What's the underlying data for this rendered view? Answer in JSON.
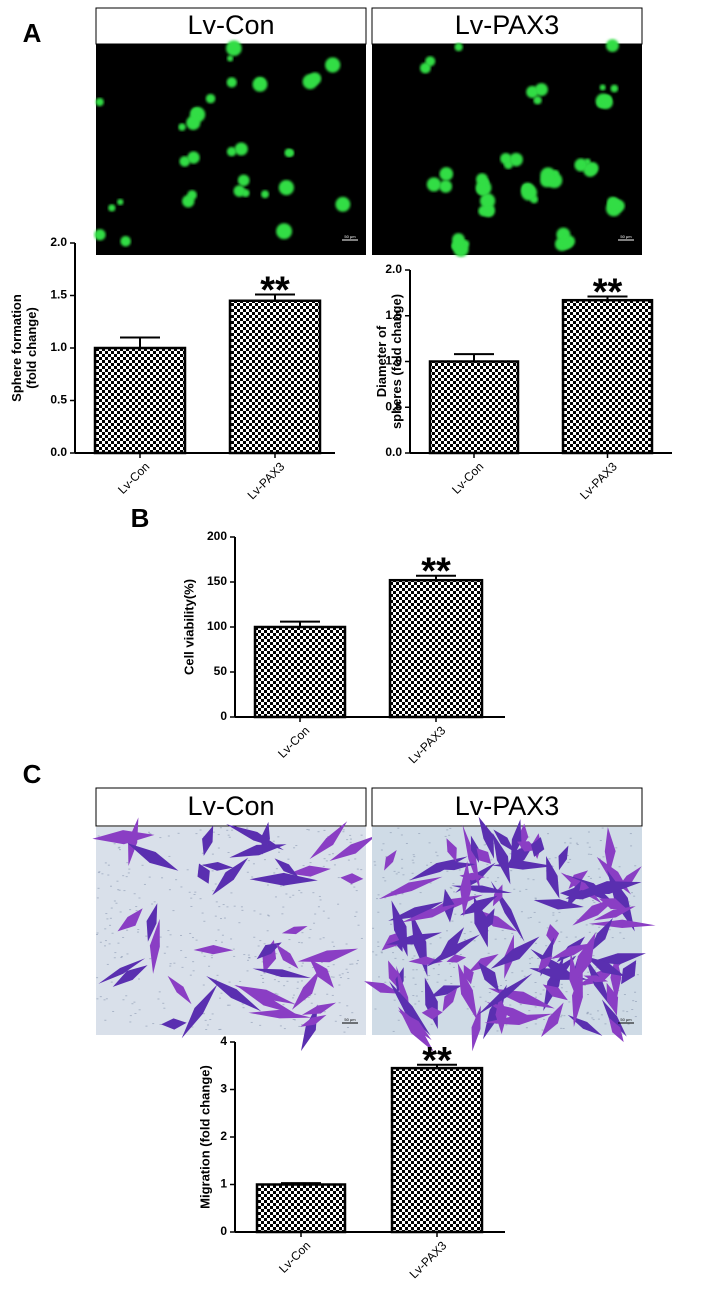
{
  "panel_labels": [
    "A",
    "B",
    "C"
  ],
  "image_headers": [
    "Lv-Con",
    "Lv-PAX3",
    "Lv-Con",
    "Lv-PAX3"
  ],
  "scale_bar_labels": [
    "50 μm",
    "50 μm",
    "50 μm",
    "50 μm"
  ],
  "chart_data": [
    {
      "type": "bar",
      "ylabel": [
        "Sphere formation",
        "(fold change)"
      ],
      "categories": [
        "Lv-Con",
        "Lv-PAX3"
      ],
      "values": [
        1.0,
        1.45
      ],
      "errors": [
        0.1,
        0.06
      ],
      "annotation": "**",
      "ylim": [
        0,
        2
      ],
      "yticks": [
        {
          "value": 0,
          "label": "0.0"
        },
        0.5,
        {
          "value": 1,
          "label": "1.0"
        },
        1.5,
        {
          "value": 2,
          "label": "2.0"
        }
      ]
    },
    {
      "type": "bar",
      "ylabel": [
        "Diameter of",
        "spheres (fold change)"
      ],
      "categories": [
        "Lv-Con",
        "Lv-PAX3"
      ],
      "values": [
        1.0,
        1.67
      ],
      "errors": [
        0.08,
        0.04
      ],
      "annotation": "**",
      "ylim": [
        0,
        2
      ],
      "yticks": [
        {
          "value": 0,
          "label": "0.0"
        },
        0.5,
        {
          "value": 1,
          "label": "1.0"
        },
        1.5,
        {
          "value": 2,
          "label": "2.0"
        }
      ]
    },
    {
      "type": "bar",
      "ylabel": [
        "Cell viability(%)"
      ],
      "categories": [
        "Lv-Con",
        "Lv-PAX3"
      ],
      "values": [
        100,
        152
      ],
      "errors": [
        6,
        5
      ],
      "annotation": "**",
      "ylim": [
        0,
        200
      ],
      "yticks": [
        0,
        50,
        100,
        150,
        200
      ]
    },
    {
      "type": "bar",
      "ylabel": [
        "Migration (fold change)"
      ],
      "categories": [
        "Lv-Con",
        "Lv-PAX3"
      ],
      "values": [
        1.0,
        3.45
      ],
      "errors": [
        0.03,
        0.07
      ],
      "annotation": "**",
      "ylim": [
        0,
        4
      ],
      "yticks": [
        0,
        1,
        2,
        3,
        4
      ]
    }
  ]
}
